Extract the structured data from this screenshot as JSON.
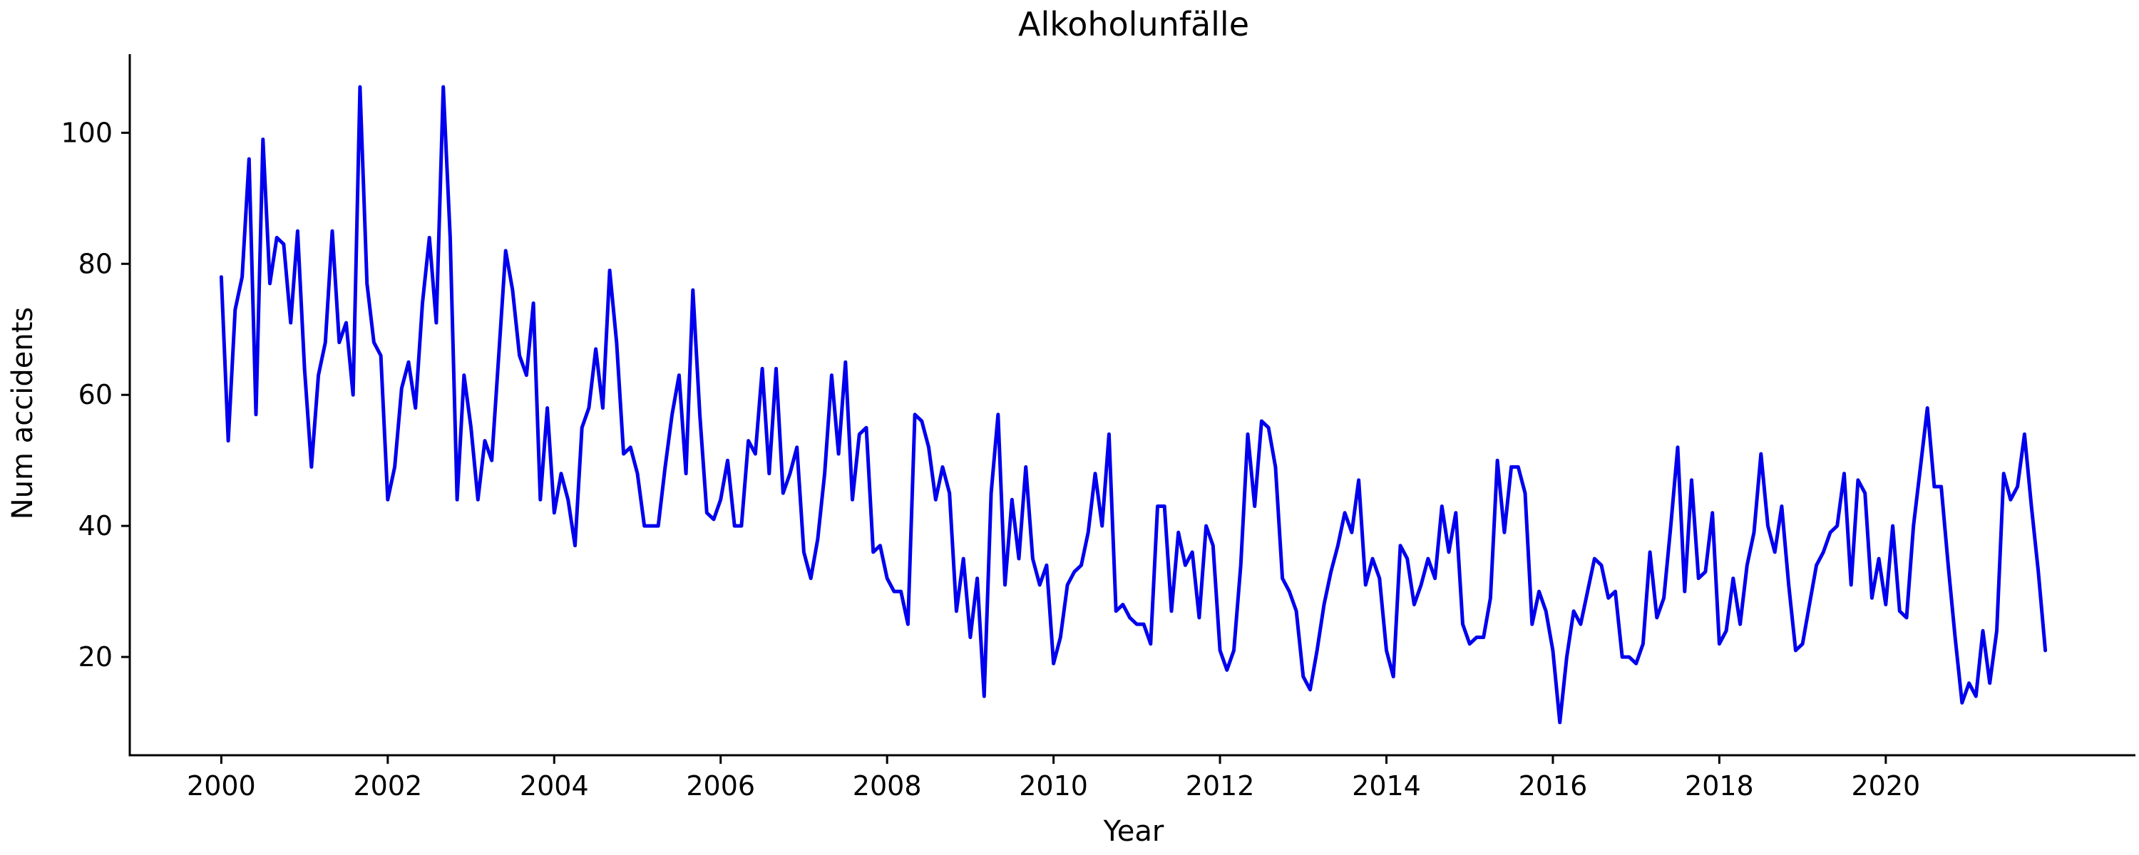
{
  "chart_data": {
    "type": "line",
    "title": "Alkoholunfälle",
    "xlabel": "Year",
    "ylabel": "Num accidents",
    "xlim": [
      1998.9,
      2023.0
    ],
    "ylim": [
      5,
      112
    ],
    "x_ticks": [
      2000,
      2002,
      2004,
      2006,
      2008,
      2010,
      2012,
      2014,
      2016,
      2018,
      2020
    ],
    "y_ticks": [
      20,
      40,
      60,
      80,
      100
    ],
    "grid": false,
    "legend": "none",
    "line_color": "#0000ee",
    "x_start": "2000-01",
    "x_step": "month",
    "series": [
      {
        "values": [
          78,
          53,
          73,
          78,
          96,
          57,
          99,
          77,
          84,
          83,
          71,
          85,
          64,
          49,
          63,
          68,
          85,
          68,
          71,
          60,
          107,
          77,
          68,
          66,
          44,
          49,
          61,
          65,
          58,
          74,
          84,
          71,
          107,
          84,
          44,
          63,
          55,
          44,
          53,
          50,
          66,
          82,
          76,
          66,
          63,
          74,
          44,
          58,
          42,
          48,
          44,
          37,
          55,
          58,
          67,
          58,
          79,
          68,
          51,
          52,
          48,
          40,
          40,
          40,
          49,
          57,
          63,
          48,
          76,
          57,
          42,
          41,
          44,
          50,
          40,
          40,
          53,
          51,
          64,
          48,
          64,
          45,
          48,
          52,
          36,
          32,
          38,
          48,
          63,
          51,
          65,
          44,
          54,
          55,
          36,
          37,
          32,
          30,
          30,
          25,
          57,
          56,
          52,
          44,
          49,
          45,
          27,
          35,
          23,
          32,
          14,
          45,
          57,
          31,
          44,
          35,
          49,
          35,
          31,
          34,
          19,
          23,
          31,
          33,
          34,
          39,
          48,
          40,
          54,
          27,
          28,
          26,
          25,
          25,
          22,
          43,
          43,
          27,
          39,
          34,
          36,
          26,
          40,
          37,
          21,
          18,
          21,
          34,
          54,
          43,
          56,
          55,
          49,
          32,
          30,
          27,
          17,
          15,
          21,
          28,
          33,
          37,
          42,
          39,
          47,
          31,
          35,
          32,
          21,
          17,
          37,
          35,
          28,
          31,
          35,
          32,
          43,
          36,
          42,
          25,
          22,
          23,
          23,
          29,
          50,
          39,
          49,
          49,
          45,
          25,
          30,
          27,
          21,
          10,
          20,
          27,
          25,
          30,
          35,
          34,
          29,
          30,
          20,
          20,
          19,
          22,
          36,
          26,
          29,
          40,
          52,
          30,
          47,
          32,
          33,
          42,
          22,
          24,
          32,
          25,
          34,
          39,
          51,
          40,
          36,
          43,
          31,
          21,
          22,
          28,
          34,
          36,
          39,
          40,
          48,
          31,
          47,
          45,
          29,
          35,
          28,
          40,
          27,
          26,
          40,
          49,
          58,
          46,
          46,
          34,
          23,
          13,
          16,
          14,
          24,
          16,
          24,
          48,
          44,
          46,
          54,
          43,
          33,
          21
        ]
      }
    ]
  }
}
